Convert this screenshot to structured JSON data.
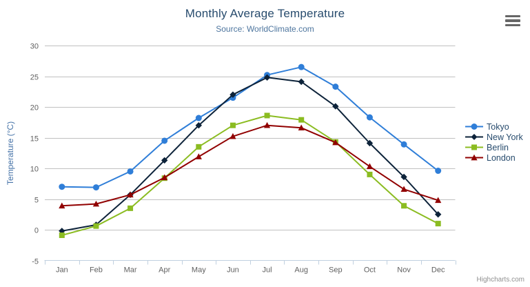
{
  "header": {
    "title": "Monthly Average Temperature",
    "subtitle": "Source: WorldClimate.com"
  },
  "toolbar": {
    "export_menu_icon": "hamburger-icon"
  },
  "credits": {
    "label": "Highcharts.com"
  },
  "colors": {
    "title_text": "#274b6d",
    "subtitle_text": "#4d759e",
    "axis_title": "#4572a7",
    "tick_label": "#606060",
    "grid_line": "#c0c0c0",
    "axis_line": "#c0d0e0",
    "legend_text": "#274b6d",
    "credits_text": "#909090"
  },
  "chart_data": {
    "type": "line",
    "title": "Monthly Average Temperature",
    "subtitle": "Source: WorldClimate.com",
    "xlabel": "",
    "ylabel": "Temperature (°C)",
    "ylim": [
      -5,
      30
    ],
    "ytick_interval": 5,
    "grid": true,
    "legend_position": "right",
    "categories": [
      "Jan",
      "Feb",
      "Mar",
      "Apr",
      "May",
      "Jun",
      "Jul",
      "Aug",
      "Sep",
      "Oct",
      "Nov",
      "Dec"
    ],
    "series": [
      {
        "name": "Tokyo",
        "color": "#2f7ed8",
        "marker": "circle",
        "values": [
          7.0,
          6.9,
          9.5,
          14.5,
          18.2,
          21.5,
          25.2,
          26.5,
          23.3,
          18.3,
          13.9,
          9.6
        ]
      },
      {
        "name": "New York",
        "color": "#0d233a",
        "marker": "diamond",
        "values": [
          -0.2,
          0.8,
          5.7,
          11.3,
          17.0,
          22.0,
          24.8,
          24.1,
          20.1,
          14.1,
          8.6,
          2.5
        ]
      },
      {
        "name": "Berlin",
        "color": "#8bbc21",
        "marker": "square",
        "values": [
          -0.9,
          0.6,
          3.5,
          8.4,
          13.5,
          17.0,
          18.6,
          17.9,
          14.3,
          9.0,
          3.9,
          1.0
        ]
      },
      {
        "name": "London",
        "color": "#910000",
        "marker": "triangle",
        "values": [
          3.9,
          4.2,
          5.7,
          8.5,
          11.9,
          15.2,
          17.0,
          16.6,
          14.2,
          10.3,
          6.6,
          4.8
        ]
      }
    ]
  }
}
